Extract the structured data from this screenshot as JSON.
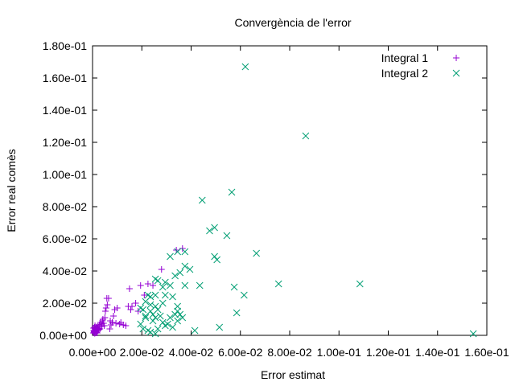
{
  "chart_data": {
    "type": "scatter",
    "title": "Convergència de l'error",
    "xlabel": "Error estimat",
    "ylabel": "Error real comès",
    "xlim": [
      0,
      0.16
    ],
    "ylim": [
      0,
      0.18
    ],
    "xticks": [
      "0.00e+00",
      "2.00e-02",
      "4.00e-02",
      "6.00e-02",
      "8.00e-02",
      "1.00e-01",
      "1.20e-01",
      "1.40e-01",
      "1.60e-01"
    ],
    "xtick_values": [
      0,
      0.02,
      0.04,
      0.06,
      0.08,
      0.1,
      0.12,
      0.14,
      0.16
    ],
    "yticks": [
      "0.00e+00",
      "2.00e-02",
      "4.00e-02",
      "6.00e-02",
      "8.00e-02",
      "1.00e-01",
      "1.20e-01",
      "1.40e-01",
      "1.60e-01",
      "1.80e-01"
    ],
    "ytick_values": [
      0,
      0.02,
      0.04,
      0.06,
      0.08,
      0.1,
      0.12,
      0.14,
      0.16,
      0.18
    ],
    "grid": false,
    "legend_position": "top-right",
    "series": [
      {
        "name": "Integral 1",
        "color": "#9400d3",
        "marker": "plus",
        "points": [
          [
            0.0003,
            0.0015
          ],
          [
            0.0005,
            0.003
          ],
          [
            0.0007,
            0.002
          ],
          [
            0.001,
            0.004
          ],
          [
            0.0012,
            0.0025
          ],
          [
            0.0015,
            0.003
          ],
          [
            0.0004,
            0.0045
          ],
          [
            0.0008,
            0.005
          ],
          [
            0.0011,
            0.0035
          ],
          [
            0.0013,
            0.0015
          ],
          [
            0.0016,
            0.002
          ],
          [
            0.0018,
            0.004
          ],
          [
            0.002,
            0.0055
          ],
          [
            0.0022,
            0.003
          ],
          [
            0.0024,
            0.0045
          ],
          [
            0.0006,
            0.0025
          ],
          [
            0.0009,
            0.0012
          ],
          [
            0.0014,
            0.005
          ],
          [
            0.0019,
            0.0015
          ],
          [
            0.0025,
            0.0035
          ],
          [
            0.001,
            0.006
          ],
          [
            0.0028,
            0.0065
          ],
          [
            0.003,
            0.004
          ],
          [
            0.0032,
            0.008
          ],
          [
            0.0035,
            0.007
          ],
          [
            0.0038,
            0.0055
          ],
          [
            0.004,
            0.009
          ],
          [
            0.0042,
            0.01
          ],
          [
            0.0045,
            0.0075
          ],
          [
            0.0048,
            0.006
          ],
          [
            0.005,
            0.011
          ],
          [
            0.0052,
            0.015
          ],
          [
            0.0055,
            0.017
          ],
          [
            0.0058,
            0.023
          ],
          [
            0.006,
            0.019
          ],
          [
            0.0065,
            0.023
          ],
          [
            0.007,
            0.004
          ],
          [
            0.0072,
            0.009
          ],
          [
            0.0075,
            0.0065
          ],
          [
            0.008,
            0.008
          ],
          [
            0.0085,
            0.012
          ],
          [
            0.009,
            0.016
          ],
          [
            0.0095,
            0.0075
          ],
          [
            0.01,
            0.017
          ],
          [
            0.011,
            0.007
          ],
          [
            0.0115,
            0.008
          ],
          [
            0.0125,
            0.0065
          ],
          [
            0.0135,
            0.006
          ],
          [
            0.0145,
            0.018
          ],
          [
            0.015,
            0.029
          ],
          [
            0.0155,
            0.016
          ],
          [
            0.016,
            0.018
          ],
          [
            0.0175,
            0.02
          ],
          [
            0.0185,
            0.015
          ],
          [
            0.0195,
            0.031
          ],
          [
            0.021,
            0.025
          ],
          [
            0.0225,
            0.032
          ],
          [
            0.0245,
            0.031
          ],
          [
            0.028,
            0.041
          ],
          [
            0.034,
            0.053
          ],
          [
            0.0365,
            0.054
          ]
        ]
      },
      {
        "name": "Integral 2",
        "color": "#009e73",
        "marker": "cross",
        "points": [
          [
            0.062,
            0.167
          ],
          [
            0.0865,
            0.124
          ],
          [
            0.0445,
            0.084
          ],
          [
            0.0565,
            0.089
          ],
          [
            0.0495,
            0.067
          ],
          [
            0.0475,
            0.065
          ],
          [
            0.0545,
            0.062
          ],
          [
            0.0345,
            0.052
          ],
          [
            0.0375,
            0.052
          ],
          [
            0.0315,
            0.049
          ],
          [
            0.0665,
            0.051
          ],
          [
            0.0495,
            0.049
          ],
          [
            0.0505,
            0.047
          ],
          [
            0.0375,
            0.043
          ],
          [
            0.0395,
            0.041
          ],
          [
            0.0355,
            0.039
          ],
          [
            0.0335,
            0.037
          ],
          [
            0.0375,
            0.031
          ],
          [
            0.0315,
            0.031
          ],
          [
            0.0255,
            0.035
          ],
          [
            0.0265,
            0.034
          ],
          [
            0.0295,
            0.033
          ],
          [
            0.0285,
            0.03
          ],
          [
            0.0435,
            0.031
          ],
          [
            0.0575,
            0.03
          ],
          [
            0.0755,
            0.032
          ],
          [
            0.1085,
            0.032
          ],
          [
            0.0615,
            0.025
          ],
          [
            0.0325,
            0.024
          ],
          [
            0.0295,
            0.025
          ],
          [
            0.0255,
            0.025
          ],
          [
            0.0235,
            0.024
          ],
          [
            0.0225,
            0.025
          ],
          [
            0.0215,
            0.021
          ],
          [
            0.0235,
            0.019
          ],
          [
            0.0255,
            0.018
          ],
          [
            0.0265,
            0.016
          ],
          [
            0.0235,
            0.015
          ],
          [
            0.0275,
            0.012
          ],
          [
            0.0215,
            0.012
          ],
          [
            0.0195,
            0.017
          ],
          [
            0.0205,
            0.016
          ],
          [
            0.0215,
            0.011
          ],
          [
            0.0245,
            0.009
          ],
          [
            0.0255,
            0.011
          ],
          [
            0.0285,
            0.008
          ],
          [
            0.0305,
            0.007
          ],
          [
            0.0315,
            0.011
          ],
          [
            0.0335,
            0.013
          ],
          [
            0.0345,
            0.009
          ],
          [
            0.0365,
            0.011
          ],
          [
            0.0345,
            0.015
          ],
          [
            0.0355,
            0.013
          ],
          [
            0.0295,
            0.006
          ],
          [
            0.0325,
            0.005
          ],
          [
            0.0265,
            0.004
          ],
          [
            0.0235,
            0.002
          ],
          [
            0.0255,
            0.001
          ],
          [
            0.0415,
            0.003
          ],
          [
            0.0515,
            0.005
          ],
          [
            0.0585,
            0.014
          ],
          [
            0.1545,
            0.001
          ],
          [
            0.0245,
            0.013
          ],
          [
            0.0195,
            0.007
          ],
          [
            0.0205,
            0.004
          ],
          [
            0.0225,
            0.003
          ],
          [
            0.0285,
            0.02
          ],
          [
            0.0345,
            0.018
          ]
        ]
      }
    ]
  }
}
